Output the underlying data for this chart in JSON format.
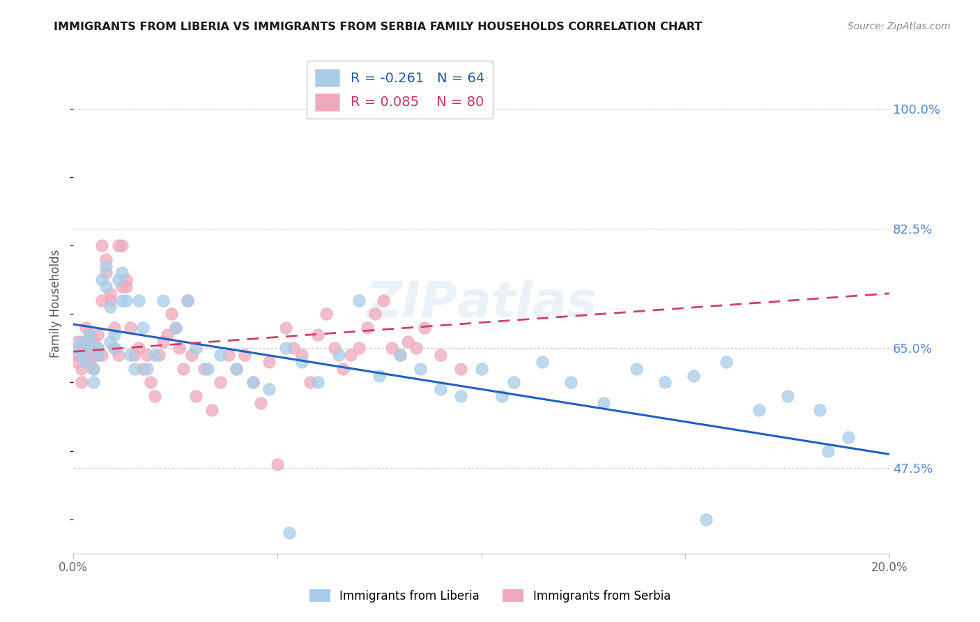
{
  "title": "IMMIGRANTS FROM LIBERIA VS IMMIGRANTS FROM SERBIA FAMILY HOUSEHOLDS CORRELATION CHART",
  "source": "Source: ZipAtlas.com",
  "ylabel": "Family Households",
  "ytick_labels": [
    "100.0%",
    "82.5%",
    "65.0%",
    "47.5%"
  ],
  "ytick_values": [
    1.0,
    0.825,
    0.65,
    0.475
  ],
  "xlim": [
    0.0,
    0.2
  ],
  "ylim": [
    0.35,
    1.08
  ],
  "legend_liberia": "Immigrants from Liberia",
  "legend_serbia": "Immigrants from Serbia",
  "R_liberia": -0.261,
  "N_liberia": 64,
  "R_serbia": 0.085,
  "N_serbia": 80,
  "color_liberia": "#a8cce8",
  "color_serbia": "#f0a8bc",
  "color_liberia_line": "#2060c0",
  "color_serbia_line": "#d04060",
  "background_color": "#ffffff",
  "liberia_x": [
    0.001,
    0.002,
    0.002,
    0.003,
    0.003,
    0.004,
    0.004,
    0.005,
    0.005,
    0.006,
    0.006,
    0.007,
    0.008,
    0.008,
    0.009,
    0.009,
    0.01,
    0.01,
    0.011,
    0.012,
    0.012,
    0.013,
    0.014,
    0.015,
    0.016,
    0.017,
    0.018,
    0.02,
    0.022,
    0.025,
    0.028,
    0.03,
    0.033,
    0.036,
    0.04,
    0.044,
    0.048,
    0.052,
    0.056,
    0.06,
    0.065,
    0.07,
    0.075,
    0.08,
    0.085,
    0.09,
    0.095,
    0.1,
    0.108,
    0.115,
    0.122,
    0.13,
    0.138,
    0.145,
    0.152,
    0.16,
    0.168,
    0.175,
    0.183,
    0.19,
    0.053,
    0.105,
    0.155,
    0.185
  ],
  "liberia_y": [
    0.65,
    0.64,
    0.66,
    0.65,
    0.63,
    0.66,
    0.67,
    0.62,
    0.6,
    0.65,
    0.64,
    0.75,
    0.74,
    0.77,
    0.71,
    0.66,
    0.67,
    0.65,
    0.75,
    0.76,
    0.72,
    0.72,
    0.64,
    0.62,
    0.72,
    0.68,
    0.62,
    0.64,
    0.72,
    0.68,
    0.72,
    0.65,
    0.62,
    0.64,
    0.62,
    0.6,
    0.59,
    0.65,
    0.63,
    0.6,
    0.64,
    0.72,
    0.61,
    0.64,
    0.62,
    0.59,
    0.58,
    0.62,
    0.6,
    0.63,
    0.6,
    0.57,
    0.62,
    0.6,
    0.61,
    0.63,
    0.56,
    0.58,
    0.56,
    0.52,
    0.38,
    0.58,
    0.4,
    0.5
  ],
  "serbia_x": [
    0.001,
    0.001,
    0.001,
    0.002,
    0.002,
    0.002,
    0.003,
    0.003,
    0.003,
    0.004,
    0.004,
    0.004,
    0.005,
    0.005,
    0.005,
    0.006,
    0.006,
    0.006,
    0.007,
    0.007,
    0.007,
    0.008,
    0.008,
    0.009,
    0.009,
    0.01,
    0.01,
    0.011,
    0.011,
    0.012,
    0.012,
    0.013,
    0.013,
    0.014,
    0.015,
    0.016,
    0.017,
    0.018,
    0.019,
    0.02,
    0.021,
    0.022,
    0.023,
    0.024,
    0.025,
    0.026,
    0.027,
    0.028,
    0.029,
    0.03,
    0.032,
    0.034,
    0.036,
    0.038,
    0.04,
    0.042,
    0.044,
    0.046,
    0.048,
    0.05,
    0.052,
    0.054,
    0.056,
    0.058,
    0.06,
    0.062,
    0.064,
    0.066,
    0.068,
    0.07,
    0.072,
    0.074,
    0.076,
    0.078,
    0.08,
    0.082,
    0.084,
    0.086,
    0.09,
    0.095
  ],
  "serbia_y": [
    0.66,
    0.64,
    0.63,
    0.65,
    0.62,
    0.6,
    0.64,
    0.66,
    0.68,
    0.63,
    0.65,
    0.67,
    0.62,
    0.64,
    0.66,
    0.64,
    0.67,
    0.65,
    0.72,
    0.64,
    0.8,
    0.78,
    0.76,
    0.72,
    0.73,
    0.68,
    0.65,
    0.64,
    0.8,
    0.8,
    0.74,
    0.75,
    0.74,
    0.68,
    0.64,
    0.65,
    0.62,
    0.64,
    0.6,
    0.58,
    0.64,
    0.66,
    0.67,
    0.7,
    0.68,
    0.65,
    0.62,
    0.72,
    0.64,
    0.58,
    0.62,
    0.56,
    0.6,
    0.64,
    0.62,
    0.64,
    0.6,
    0.57,
    0.63,
    0.48,
    0.68,
    0.65,
    0.64,
    0.6,
    0.67,
    0.7,
    0.65,
    0.62,
    0.64,
    0.65,
    0.68,
    0.7,
    0.72,
    0.65,
    0.64,
    0.66,
    0.65,
    0.68,
    0.64,
    0.62
  ],
  "liberia_line_x": [
    0.0,
    0.2
  ],
  "liberia_line_y": [
    0.685,
    0.495
  ],
  "serbia_line_x": [
    0.0,
    0.2
  ],
  "serbia_line_y": [
    0.645,
    0.73
  ]
}
